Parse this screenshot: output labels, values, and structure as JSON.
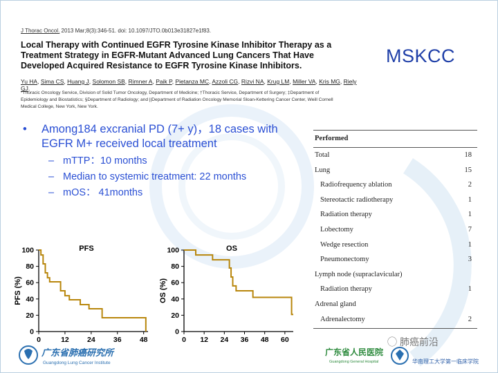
{
  "citation": {
    "journal": "J Thorac Oncol.",
    "details": " 2013 Mar;8(3):346-51. doi: 10.1097/JTO.0b013e31827e1f83."
  },
  "paper_title": "Local Therapy with Continued EGFR Tyrosine Kinase Inhibitor Therapy as a Treatment Strategy in EGFR-Mutant Advanced Lung Cancers That Have Developed Acquired Resistance to EGFR Tyrosine Kinase Inhibitors.",
  "authors": [
    "Yu HA",
    "Sima CS",
    "Huang J",
    "Solomon SB",
    "Rimner A",
    "Paik P",
    "Pietanza MC",
    "Azzoli CG",
    "Rizvi NA",
    "Krug LM",
    "Miller VA",
    "Kris MG",
    "Riely GJ"
  ],
  "affiliations": "*Thoracic Oncology Service, Division of Solid Tumor Oncology, Department of Medicine; †Thoracic Service, Department of Surgery; ‡Department of Epidemiology and Biostatistics; §Department of Radiology; and ||Department of Radiation Oncology Memorial Sloan-Kettering Cancer Center, Weill Cornell Medical College, New York, New York.",
  "institution_label": "MSKCC",
  "bullets": {
    "main": "Among184 excranial PD (7+ y)，18 cases with EGFR M+  received local treatment",
    "subs": [
      "mTTP：10  months",
      "Median to systemic treatment: 22 months",
      "mOS： 41months"
    ]
  },
  "table": {
    "header": "Performed",
    "rows": [
      {
        "label": "Total",
        "value": "18",
        "sub": false
      },
      {
        "label": "Lung",
        "value": "15",
        "sub": false
      },
      {
        "label": "Radiofrequency ablation",
        "value": "2",
        "sub": true
      },
      {
        "label": "Stereotactic radiotherapy",
        "value": "1",
        "sub": true
      },
      {
        "label": "Radiation therapy",
        "value": "1",
        "sub": true
      },
      {
        "label": "Lobectomy",
        "value": "7",
        "sub": true
      },
      {
        "label": "Wedge resection",
        "value": "1",
        "sub": true
      },
      {
        "label": "Pneumonectomy",
        "value": "3",
        "sub": true
      },
      {
        "label": "Lymph node (supraclavicular)",
        "value": "",
        "sub": false
      },
      {
        "label": "Radiation therapy",
        "value": "1",
        "sub": true
      },
      {
        "label": "Adrenal gland",
        "value": "",
        "sub": false
      },
      {
        "label": "Adrenalectomy",
        "value": "2",
        "sub": true
      }
    ]
  },
  "chart_data": [
    {
      "type": "line",
      "title": "PFS",
      "xlabel": "",
      "ylabel": "PFS (%)",
      "xlim": [
        0,
        50
      ],
      "ylim": [
        0,
        100
      ],
      "xticks": [
        0,
        12,
        24,
        36,
        48
      ],
      "yticks": [
        0,
        20,
        40,
        60,
        80,
        100
      ],
      "color": "#b8860b",
      "series": [
        {
          "name": "PFS",
          "step": [
            [
              0,
              100
            ],
            [
              1,
              94
            ],
            [
              2,
              83
            ],
            [
              3,
              72
            ],
            [
              4,
              66
            ],
            [
              5,
              61
            ],
            [
              10,
              50
            ],
            [
              12,
              44
            ],
            [
              14,
              39
            ],
            [
              19,
              33
            ],
            [
              23,
              28
            ],
            [
              29,
              17
            ],
            [
              49,
              17
            ],
            [
              49,
              0
            ]
          ]
        }
      ]
    },
    {
      "type": "line",
      "title": "OS",
      "xlabel": "",
      "ylabel": "OS (%)",
      "xlim": [
        0,
        65
      ],
      "ylim": [
        0,
        100
      ],
      "xticks": [
        0,
        12,
        24,
        36,
        48,
        60
      ],
      "yticks": [
        0,
        20,
        40,
        60,
        80,
        100
      ],
      "color": "#b8860b",
      "series": [
        {
          "name": "OS",
          "step": [
            [
              0,
              100
            ],
            [
              7,
              94
            ],
            [
              17,
              94
            ],
            [
              17,
              88
            ],
            [
              26,
              88
            ],
            [
              27,
              78
            ],
            [
              28,
              67
            ],
            [
              29,
              56
            ],
            [
              31,
              50
            ],
            [
              40,
              50
            ],
            [
              41,
              42
            ],
            [
              63,
              42
            ],
            [
              64,
              21
            ],
            [
              65,
              21
            ]
          ]
        }
      ]
    }
  ],
  "logos": {
    "left_cn": "广东省肺癌研究所",
    "left_en": "Guangdong Lung Cancer Institute",
    "right_cn": "广东省人民医院",
    "right_en": "Guangdong General Hospital",
    "right_sub": "华南理工大学第一临床学院",
    "watermark": "肺癌前沿"
  },
  "colors": {
    "accent_blue": "#2a4fd4",
    "title_blue": "#1f3fa8",
    "curve": "#b8860b",
    "green": "#2e8b3e"
  }
}
